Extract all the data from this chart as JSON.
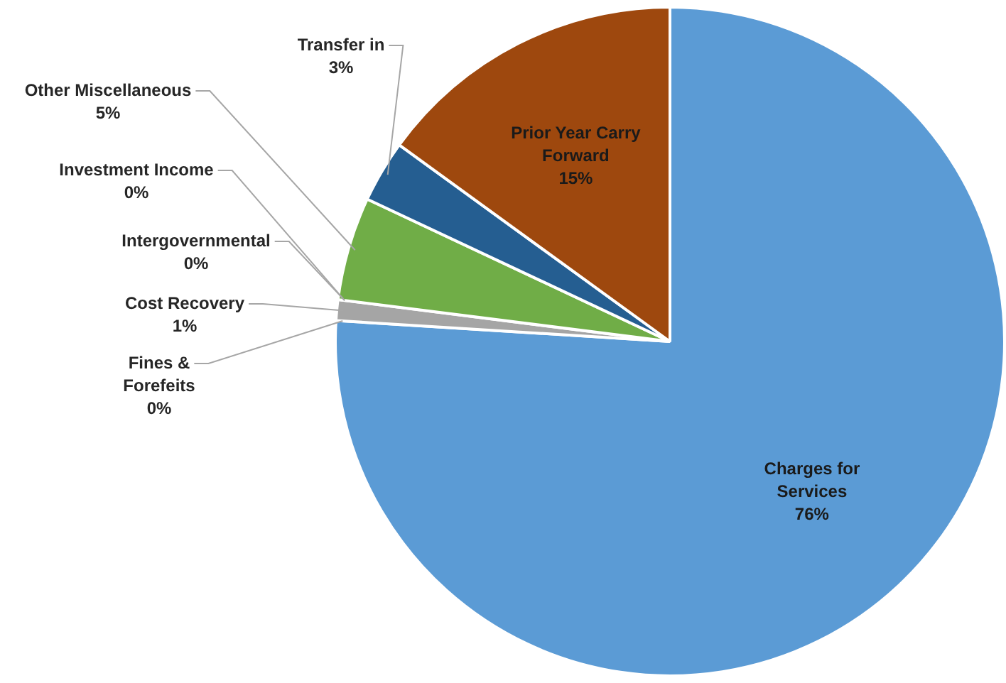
{
  "chart_data": {
    "type": "pie",
    "categories": [
      "Charges for Services",
      "Fines & Forefeits",
      "Cost Recovery",
      "Intergovernmental",
      "Investment Income",
      "Other Miscellaneous",
      "Transfer in",
      "Prior Year Carry Forward"
    ],
    "values": [
      76,
      0,
      1,
      0,
      0,
      5,
      3,
      15
    ],
    "value_labels": [
      "76%",
      "0%",
      "1%",
      "0%",
      "0%",
      "5%",
      "3%",
      "15%"
    ],
    "colors": [
      "#5b9bd5",
      "#ed7d31",
      "#a5a5a5",
      "#ffc000",
      "#4472c4",
      "#70ad47",
      "#255e91",
      "#9e480e"
    ],
    "legend": false
  }
}
